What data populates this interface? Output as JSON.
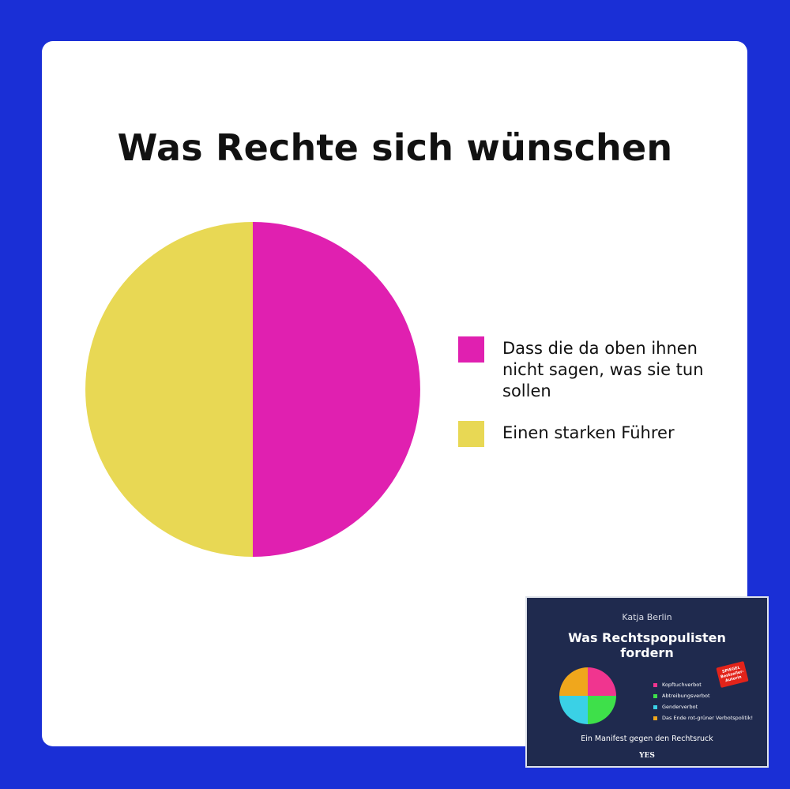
{
  "chart_data": {
    "type": "pie",
    "title": "Was Rechte sich wünschen",
    "slices": [
      {
        "label": "Dass die da oben ihnen nicht sagen, was sie tun sollen",
        "value": 50,
        "color": "#e020b0"
      },
      {
        "label": "Einen starken Führer",
        "value": 50,
        "color": "#e8d854"
      }
    ],
    "legend_position": "right"
  },
  "colors": {
    "background": "#1a2fd6",
    "card": "#ffffff",
    "book_background": "#1f2a4e"
  },
  "book": {
    "author": "Katja Berlin",
    "title_line1": "Was Rechtspopulisten",
    "title_line2": "fordern",
    "badge_line1": "SPIEGEL",
    "badge_line2": "Bestseller-",
    "badge_line3": "Autorin",
    "legend": [
      {
        "label": "Kopftuchverbot",
        "color": "#f0358f"
      },
      {
        "label": "Abtreibungsverbot",
        "color": "#3ee04a"
      },
      {
        "label": "Genderverbot",
        "color": "#3ad1e6"
      },
      {
        "label": "Das Ende rot-grüner Verbotspolitik!",
        "color": "#f0a71c"
      }
    ],
    "pie": [
      {
        "label": "Kopftuchverbot",
        "value": 25,
        "color": "#f0358f"
      },
      {
        "label": "Abtreibungsverbot",
        "value": 25,
        "color": "#3ee04a"
      },
      {
        "label": "Genderverbot",
        "value": 25,
        "color": "#3ad1e6"
      },
      {
        "label": "Das Ende rot-grüner Verbotspolitik!",
        "value": 25,
        "color": "#f0a71c"
      }
    ],
    "subtitle": "Ein Manifest gegen den Rechtsruck",
    "publisher": "YES"
  }
}
